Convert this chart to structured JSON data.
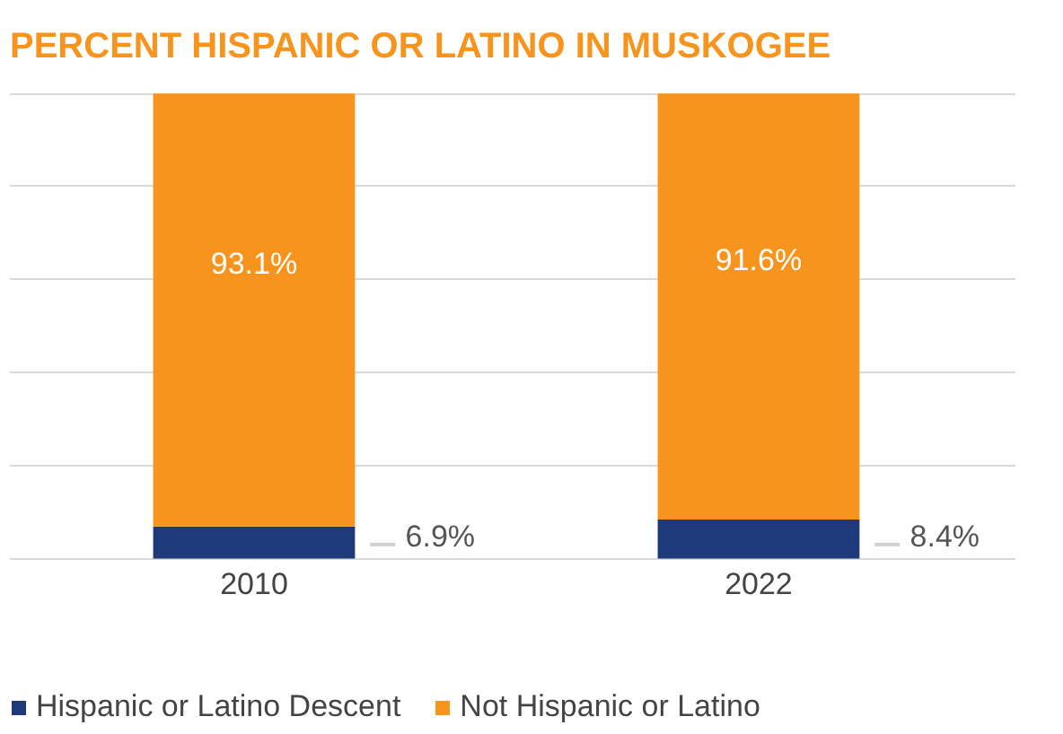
{
  "chart_data": {
    "type": "bar",
    "title": "PERCENT HISPANIC OR LATINO IN MUSKOGEE",
    "categories": [
      "2010",
      "2022"
    ],
    "stacked": true,
    "series": [
      {
        "name": "Hispanic or Latino Descent",
        "color": "#1f3a7a",
        "values": [
          6.9,
          8.4
        ],
        "value_labels": [
          "6.9%",
          "8.4%"
        ]
      },
      {
        "name": "Not Hispanic or Latino",
        "color": "#f7941d",
        "values": [
          93.1,
          91.6
        ],
        "value_labels": [
          "93.1%",
          "91.6%"
        ]
      }
    ],
    "ylim": [
      0,
      100
    ],
    "yticks": [
      0,
      20,
      40,
      60,
      80,
      100
    ],
    "tick_labels": "x",
    "grid": "y",
    "legend": "bottom"
  }
}
